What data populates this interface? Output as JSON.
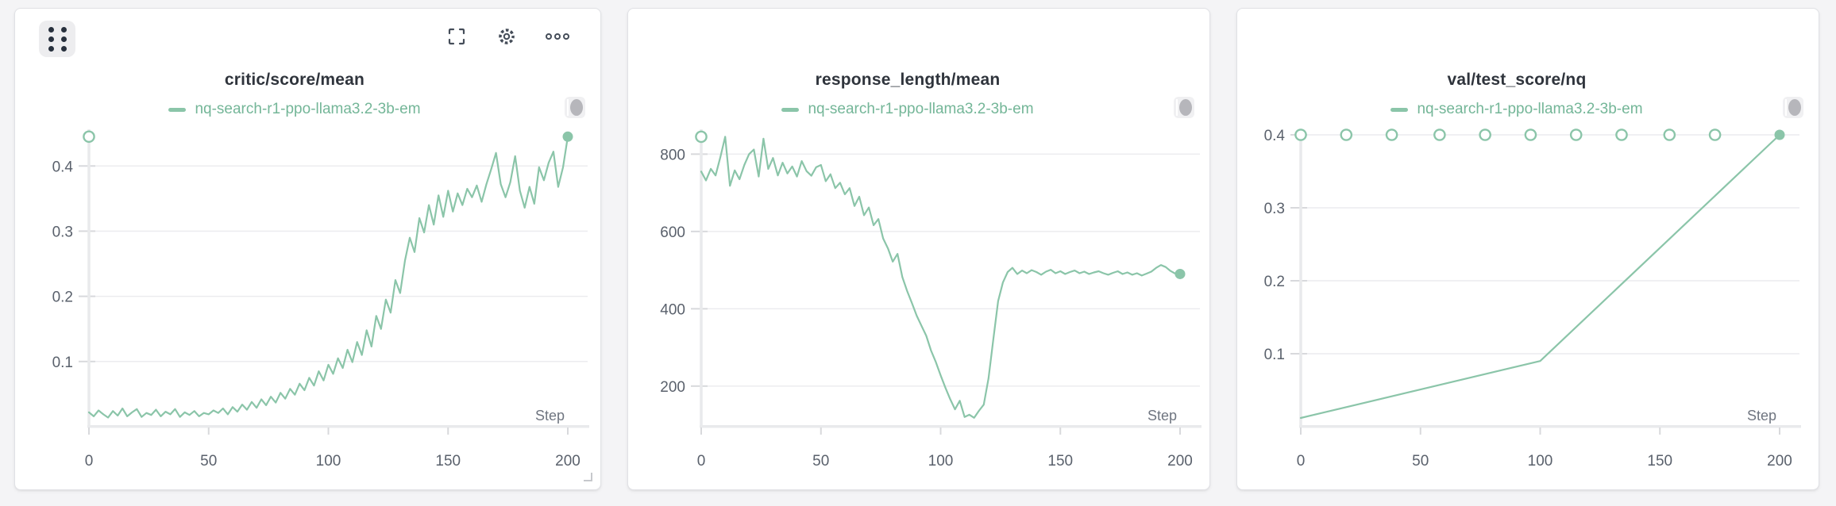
{
  "page": {
    "background": "#f4f4f6"
  },
  "colors": {
    "run_line": "#8bc5a9",
    "legend_text": "#74b698",
    "title_text": "#2f343c",
    "axis_label": "#5a616c",
    "step_label": "#6f7580",
    "gridline": "#ececef",
    "axis_bar": "#e9eaec",
    "tick": "#d8d9dc"
  },
  "toolbar": {
    "icons": [
      "drag-handle-icon",
      "fullscreen-icon",
      "gear-icon",
      "ellipsis-icon"
    ]
  },
  "chart_data": [
    {
      "type": "line",
      "title": "critic/score/mean",
      "xlabel": "Step",
      "x_ticks": [
        0,
        50,
        100,
        150,
        200
      ],
      "y_ticks": [
        0.1,
        0.2,
        0.3,
        0.4
      ],
      "x_domain": [
        0,
        200
      ],
      "y_domain": [
        0,
        0.449
      ],
      "grid": "horizontal",
      "legend_position": "top-center",
      "series": [
        {
          "name": "nq-search-r1-ppo-llama3.2-3b-em",
          "color": "#8bc5a9",
          "x_step": 2,
          "y": [
            0.022,
            0.016,
            0.025,
            0.019,
            0.014,
            0.024,
            0.017,
            0.028,
            0.016,
            0.022,
            0.027,
            0.015,
            0.021,
            0.018,
            0.026,
            0.016,
            0.023,
            0.019,
            0.027,
            0.015,
            0.022,
            0.018,
            0.024,
            0.016,
            0.021,
            0.019,
            0.025,
            0.021,
            0.028,
            0.019,
            0.03,
            0.023,
            0.034,
            0.026,
            0.038,
            0.029,
            0.042,
            0.033,
            0.046,
            0.037,
            0.052,
            0.043,
            0.058,
            0.049,
            0.066,
            0.056,
            0.075,
            0.063,
            0.085,
            0.071,
            0.095,
            0.081,
            0.105,
            0.09,
            0.118,
            0.099,
            0.13,
            0.11,
            0.148,
            0.123,
            0.17,
            0.15,
            0.195,
            0.175,
            0.225,
            0.205,
            0.255,
            0.29,
            0.268,
            0.32,
            0.298,
            0.34,
            0.31,
            0.355,
            0.322,
            0.362,
            0.33,
            0.358,
            0.34,
            0.365,
            0.352,
            0.37,
            0.345,
            0.372,
            0.395,
            0.42,
            0.372,
            0.352,
            0.375,
            0.415,
            0.362,
            0.336,
            0.368,
            0.342,
            0.398,
            0.378,
            0.405,
            0.422,
            0.368,
            0.398,
            0.445
          ]
        }
      ],
      "start_marker": {
        "x": 0,
        "y": 0.445,
        "style": "open"
      },
      "end_marker": {
        "x": 200,
        "y": 0.445,
        "style": "filled"
      }
    },
    {
      "type": "line",
      "title": "response_length/mean",
      "xlabel": "Step",
      "x_ticks": [
        0,
        50,
        100,
        150,
        200
      ],
      "y_ticks": [
        200,
        400,
        600,
        800
      ],
      "x_domain": [
        0,
        200
      ],
      "y_domain": [
        95,
        852
      ],
      "grid": "horizontal",
      "legend_position": "top-center",
      "series": [
        {
          "name": "nq-search-r1-ppo-llama3.2-3b-em",
          "color": "#8bc5a9",
          "x_step": 2,
          "y": [
            755,
            732,
            762,
            745,
            792,
            845,
            718,
            758,
            735,
            772,
            800,
            812,
            742,
            840,
            762,
            790,
            745,
            778,
            750,
            768,
            742,
            782,
            756,
            744,
            766,
            772,
            730,
            748,
            712,
            726,
            696,
            712,
            666,
            690,
            642,
            662,
            616,
            632,
            582,
            556,
            522,
            542,
            482,
            446,
            415,
            382,
            356,
            330,
            292,
            262,
            228,
            196,
            166,
            140,
            162,
            120,
            126,
            118,
            136,
            152,
            220,
            320,
            420,
            468,
            495,
            506,
            490,
            499,
            492,
            500,
            495,
            488,
            496,
            501,
            492,
            497,
            490,
            495,
            499,
            492,
            496,
            490,
            494,
            497,
            492,
            488,
            493,
            497,
            490,
            494,
            488,
            492,
            486,
            491,
            496,
            506,
            513,
            508,
            498,
            491,
            489
          ]
        }
      ],
      "start_marker": {
        "x": 0,
        "y": 845,
        "style": "open"
      },
      "end_marker": {
        "x": 200,
        "y": 490,
        "style": "filled"
      }
    },
    {
      "type": "line",
      "title": "val/test_score/nq",
      "xlabel": "Step",
      "x_ticks": [
        0,
        50,
        100,
        150,
        200
      ],
      "y_ticks": [
        0.1,
        0.2,
        0.3,
        0.4
      ],
      "x_domain": [
        0,
        200
      ],
      "y_domain": [
        0,
        0.4
      ],
      "grid": "horizontal",
      "legend_position": "top-center",
      "series": [
        {
          "name": "nq-search-r1-ppo-llama3.2-3b-em",
          "color": "#8bc5a9",
          "x": [
            0,
            100,
            200
          ],
          "y": [
            0.012,
            0.09,
            0.4
          ]
        }
      ],
      "top_markers": {
        "y": 0.4,
        "style": "open",
        "x": [
          0,
          19,
          38,
          58,
          77,
          96,
          115,
          134,
          154,
          173
        ]
      },
      "end_marker": {
        "x": 200,
        "y": 0.4,
        "style": "filled"
      }
    }
  ]
}
